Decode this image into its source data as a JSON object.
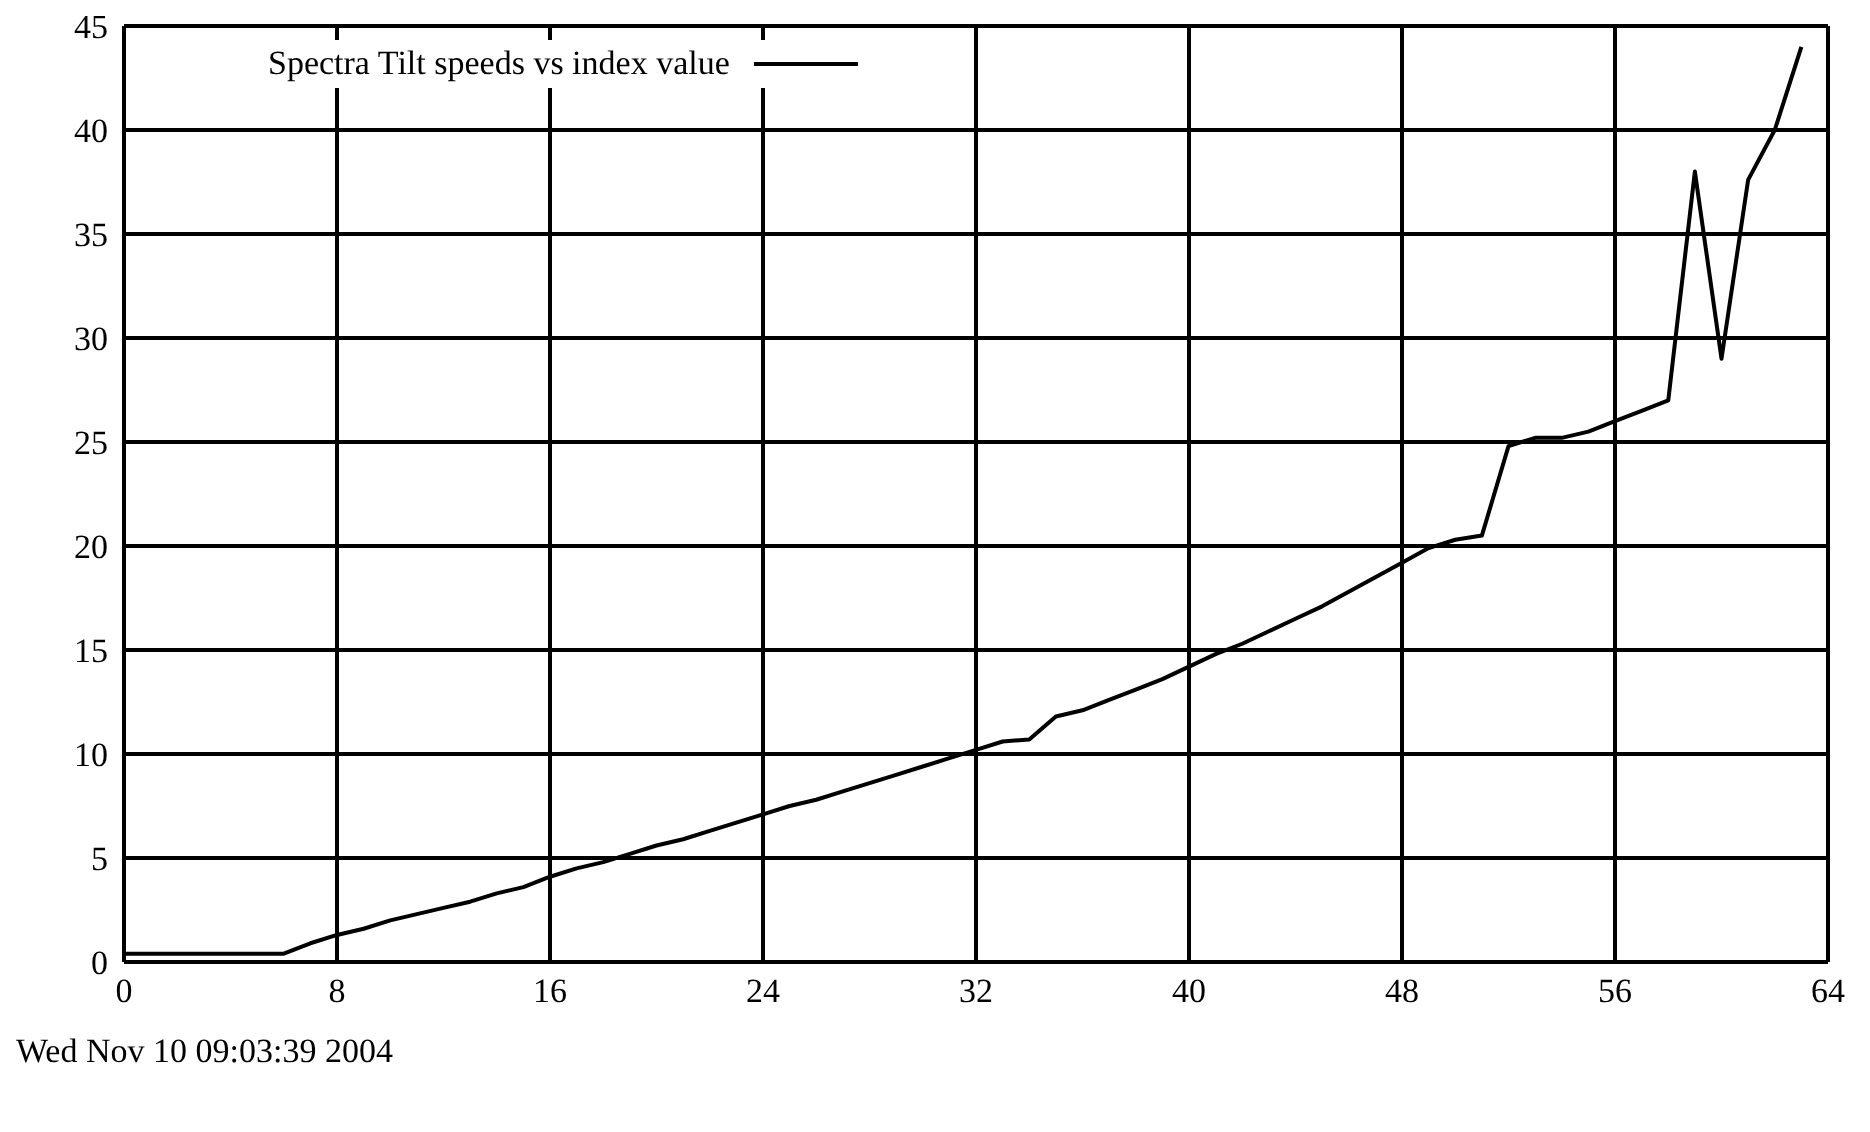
{
  "chart_data": {
    "type": "line",
    "x": [
      0,
      1,
      2,
      3,
      4,
      5,
      6,
      7,
      8,
      9,
      10,
      11,
      12,
      13,
      14,
      15,
      16,
      17,
      18,
      19,
      20,
      21,
      22,
      23,
      24,
      25,
      26,
      27,
      28,
      29,
      30,
      31,
      32,
      33,
      34,
      35,
      36,
      37,
      38,
      39,
      40,
      41,
      42,
      43,
      44,
      45,
      46,
      47,
      48,
      49,
      50,
      51,
      52,
      53,
      54,
      55,
      56,
      57,
      58,
      59,
      60,
      61,
      62,
      63
    ],
    "series": [
      {
        "name": "Spectra Tilt speeds vs index value",
        "color": "#000000",
        "values": [
          0.4,
          0.4,
          0.4,
          0.4,
          0.4,
          0.4,
          0.4,
          0.9,
          1.3,
          1.6,
          2.0,
          2.3,
          2.6,
          2.9,
          3.3,
          3.6,
          4.1,
          4.5,
          4.8,
          5.2,
          5.6,
          5.9,
          6.3,
          6.7,
          7.1,
          7.5,
          7.8,
          8.2,
          8.6,
          9.0,
          9.4,
          9.8,
          10.2,
          10.6,
          10.7,
          11.8,
          12.1,
          12.6,
          13.1,
          13.6,
          14.2,
          14.8,
          15.3,
          15.9,
          16.5,
          17.1,
          17.8,
          18.5,
          19.2,
          19.9,
          20.3,
          20.5,
          24.8,
          25.2,
          25.2,
          25.5,
          26.0,
          26.5,
          27.0,
          38.0,
          29.0,
          37.6,
          40.0,
          44.0
        ]
      }
    ],
    "xlim": [
      0,
      64
    ],
    "xticks": [
      0,
      8,
      16,
      24,
      32,
      40,
      48,
      56,
      64
    ],
    "ylim": [
      0,
      45
    ],
    "yticks": [
      0,
      5,
      10,
      15,
      20,
      25,
      30,
      35,
      40,
      45
    ],
    "grid": true,
    "legend": "top left",
    "marker": "none",
    "line_style": "solid",
    "annotations": [
      "Wed Nov 10 09:03:39 2004"
    ]
  }
}
